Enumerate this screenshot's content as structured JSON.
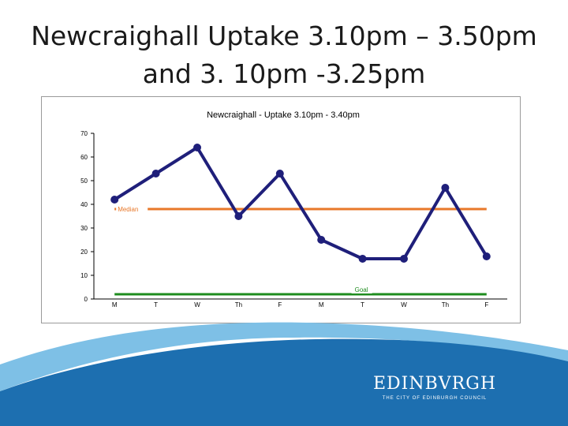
{
  "slide": {
    "title_line1": "Newcraighall Uptake 3.10pm – 3.50pm",
    "title_line2": "and 3. 10pm -3.25pm"
  },
  "chart_data": {
    "type": "line",
    "title": "Newcraighall - Uptake 3.10pm - 3.40pm",
    "categories": [
      "M",
      "T",
      "W",
      "Th",
      "F",
      "M",
      "T",
      "W",
      "Th",
      "F"
    ],
    "series": [
      {
        "values": [
          42,
          53,
          64,
          35,
          53,
          25,
          17,
          17,
          47,
          18
        ],
        "color": "#1f1f7a"
      }
    ],
    "reference_lines": [
      {
        "name": "Median",
        "value": 38,
        "color": "#e8782a"
      },
      {
        "name": "Goal",
        "value": 2,
        "color": "#1e8c1e"
      }
    ],
    "ylim": [
      0,
      70
    ],
    "yticks": [
      0,
      10,
      20,
      30,
      40,
      50,
      60,
      70
    ],
    "grid": false,
    "xlabel": "",
    "ylabel": ""
  },
  "logo": {
    "name": "EDINBVRGH",
    "subtitle": "THE CITY OF EDINBURGH COUNCIL"
  },
  "colors": {
    "wave_dark": "#1d6fb0",
    "wave_light": "#7ec0e6"
  }
}
